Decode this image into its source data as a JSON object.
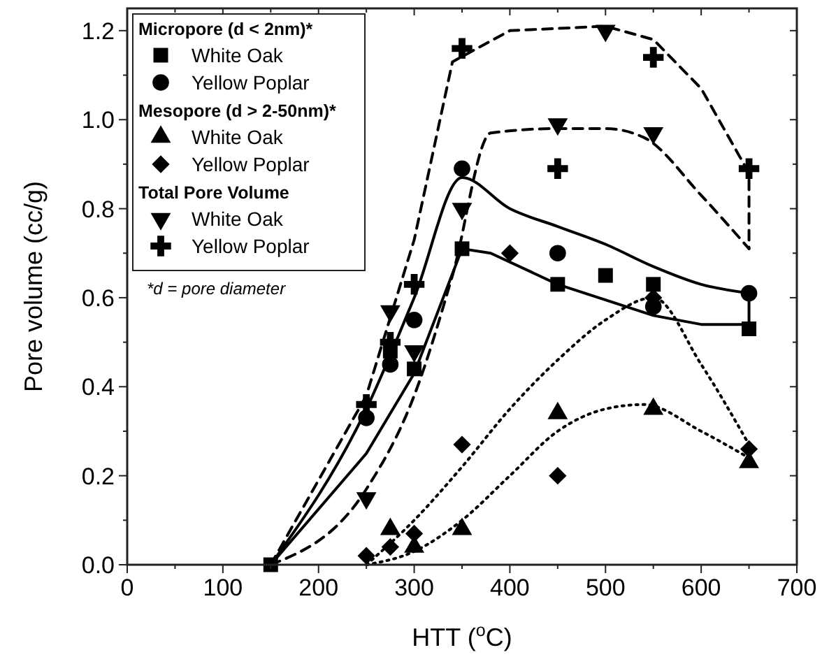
{
  "chart_data": {
    "type": "scatter",
    "xlabel": "HTT ($^{o}$C)",
    "ylabel": "Pore volume (cc/g)",
    "xlim": [
      0,
      700
    ],
    "ylim": [
      0,
      1.25
    ],
    "xticks": [
      0,
      100,
      200,
      300,
      400,
      500,
      600,
      700
    ],
    "yticks": [
      {
        "value": 0,
        "label": "0.0"
      },
      {
        "value": 0.2,
        "label": "0.2"
      },
      {
        "value": 0.4,
        "label": "0.4"
      },
      {
        "value": 0.6,
        "label": "0.6"
      },
      {
        "value": 0.8,
        "label": "0.8"
      },
      {
        "value": 1,
        "label": "1.0"
      },
      {
        "value": 1.2,
        "label": "1.2"
      }
    ],
    "legend": "top left",
    "grid": false,
    "annotations": [
      "Micropore (d < 2nm)*",
      "Mesopore (d > 2-50nm)*",
      "Total Pore Volume",
      "*d = pore diameter"
    ],
    "series": [
      {
        "name": "White Oak",
        "color": "#000000",
        "marker": "square",
        "x": [
          150,
          275,
          300,
          350,
          450,
          500,
          550,
          650
        ],
        "values": [
          0,
          0.48,
          0.44,
          0.71,
          0.63,
          0.65,
          0.63,
          0.53
        ]
      },
      {
        "name": "Yellow Poplar",
        "color": "#000000",
        "marker": "circle",
        "x": [
          250,
          275,
          300,
          350,
          450,
          550,
          650
        ],
        "values": [
          0.33,
          0.45,
          0.55,
          0.89,
          0.7,
          0.58,
          0.61
        ]
      },
      {
        "name": "White Oak",
        "color": "#000000",
        "marker": "triangle",
        "x": [
          275,
          300,
          350,
          450,
          550,
          650
        ],
        "values": [
          0.08,
          0.04,
          0.08,
          0.34,
          0.35,
          0.23
        ]
      },
      {
        "name": "Yellow Poplar",
        "color": "#000000",
        "marker": "diamond",
        "x": [
          250,
          275,
          300,
          350,
          400,
          450,
          550,
          650
        ],
        "values": [
          0.02,
          0.04,
          0.07,
          0.27,
          0.7,
          0.2,
          0.6,
          0.26
        ]
      },
      {
        "name": "White Oak",
        "color": "#000000",
        "marker": "triangle-down",
        "x": [
          250,
          275,
          300,
          350,
          450,
          500,
          550
        ],
        "values": [
          0.15,
          0.57,
          0.48,
          0.8,
          0.99,
          1.2,
          0.97
        ]
      },
      {
        "name": "Yellow Poplar",
        "color": "#000000",
        "marker": "cross",
        "x": [
          250,
          275,
          300,
          350,
          450,
          550,
          650
        ],
        "values": [
          0.36,
          0.5,
          0.63,
          1.16,
          0.89,
          1.14,
          0.89
        ]
      },
      {
        "type": "line",
        "color": "#000000",
        "line_style": "solid",
        "x": [
          150,
          250,
          300,
          350,
          380,
          450,
          550,
          600,
          650,
          650
        ],
        "values": [
          0,
          0.25,
          0.43,
          0.71,
          0.7,
          0.63,
          0.56,
          0.54,
          0.54,
          0.61
        ]
      },
      {
        "type": "line",
        "color": "#000000",
        "line_style": "solid",
        "x": [
          150,
          250,
          300,
          350,
          400,
          450,
          500,
          550,
          600,
          650
        ],
        "values": [
          0,
          0.35,
          0.6,
          0.87,
          0.8,
          0.76,
          0.72,
          0.67,
          0.63,
          0.61
        ]
      },
      {
        "type": "line",
        "color": "#000000",
        "line_style": "dashed",
        "x": [
          150,
          250,
          300,
          340,
          380,
          450,
          500,
          540,
          600,
          650
        ],
        "values": [
          0,
          0.17,
          0.38,
          0.65,
          0.97,
          0.98,
          0.98,
          0.96,
          0.83,
          0.71
        ]
      },
      {
        "type": "line",
        "color": "#000000",
        "line_style": "dashed",
        "x": [
          150,
          250,
          300,
          340,
          400,
          500,
          550,
          600,
          650,
          650
        ],
        "values": [
          0,
          0.38,
          0.73,
          1.13,
          1.2,
          1.21,
          1.18,
          1.07,
          0.88,
          0.71
        ]
      },
      {
        "type": "line",
        "color": "#000000",
        "line_style": "dotted",
        "x": [
          250,
          300,
          350,
          400,
          450,
          500,
          540,
          600,
          650
        ],
        "values": [
          0,
          0.03,
          0.1,
          0.2,
          0.3,
          0.35,
          0.36,
          0.3,
          0.24
        ]
      },
      {
        "type": "line",
        "color": "#000000",
        "line_style": "dotted",
        "x": [
          250,
          300,
          350,
          400,
          450,
          500,
          550,
          600,
          650
        ],
        "values": [
          0,
          0.1,
          0.22,
          0.35,
          0.46,
          0.55,
          0.6,
          0.45,
          0.27
        ]
      }
    ]
  }
}
